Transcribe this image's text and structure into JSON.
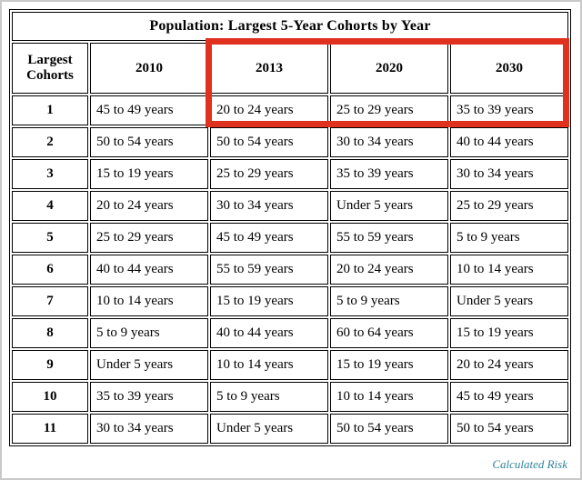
{
  "page": {
    "credit": "Calculated Risk",
    "accent_red": "#e0301e",
    "credit_color": "#31849b"
  },
  "chart_data": {
    "type": "table",
    "title": "Population: Largest 5-Year Cohorts by Year",
    "columns": [
      "Largest Cohorts",
      "2010",
      "2013",
      "2020",
      "2030"
    ],
    "rows": [
      [
        "1",
        "45 to 49 years",
        "20 to 24 years",
        "25 to 29 years",
        "35 to 39 years"
      ],
      [
        "2",
        "50 to 54 years",
        "50 to 54 years",
        "30 to 34 years",
        "40 to 44 years"
      ],
      [
        "3",
        "15 to 19 years",
        "25 to 29 years",
        "35 to 39 years",
        "30 to 34 years"
      ],
      [
        "4",
        "20 to 24 years",
        "30 to 34 years",
        "Under 5 years",
        "25 to 29 years"
      ],
      [
        "5",
        "25 to 29 years",
        "45 to 49 years",
        "55 to 59 years",
        "5 to 9 years"
      ],
      [
        "6",
        "40 to 44 years",
        "55 to 59 years",
        "20 to 24 years",
        "10 to 14 years"
      ],
      [
        "7",
        "10 to 14 years",
        "15 to 19 years",
        "5 to 9 years",
        "Under 5 years"
      ],
      [
        "8",
        "5 to 9 years",
        "40 to 44 years",
        "60 to 64 years",
        "15 to 19 years"
      ],
      [
        "9",
        "Under 5 years",
        "10 to 14 years",
        "15 to 19 years",
        "20 to 24 years"
      ],
      [
        "10",
        "35 to 39 years",
        "5 to 9 years",
        "10 to 14 years",
        "45 to 49 years"
      ],
      [
        "11",
        "30 to 34 years",
        "Under 5 years",
        "50 to 54 years",
        "50 to 54 years"
      ]
    ],
    "highlight": {
      "description": "red rectangle around header cells 2013, 2020, 2030 and the rank-1 row cells beneath them",
      "columns": [
        "2013",
        "2020",
        "2030"
      ],
      "rows_highlighted": [
        "header",
        "1"
      ]
    }
  }
}
